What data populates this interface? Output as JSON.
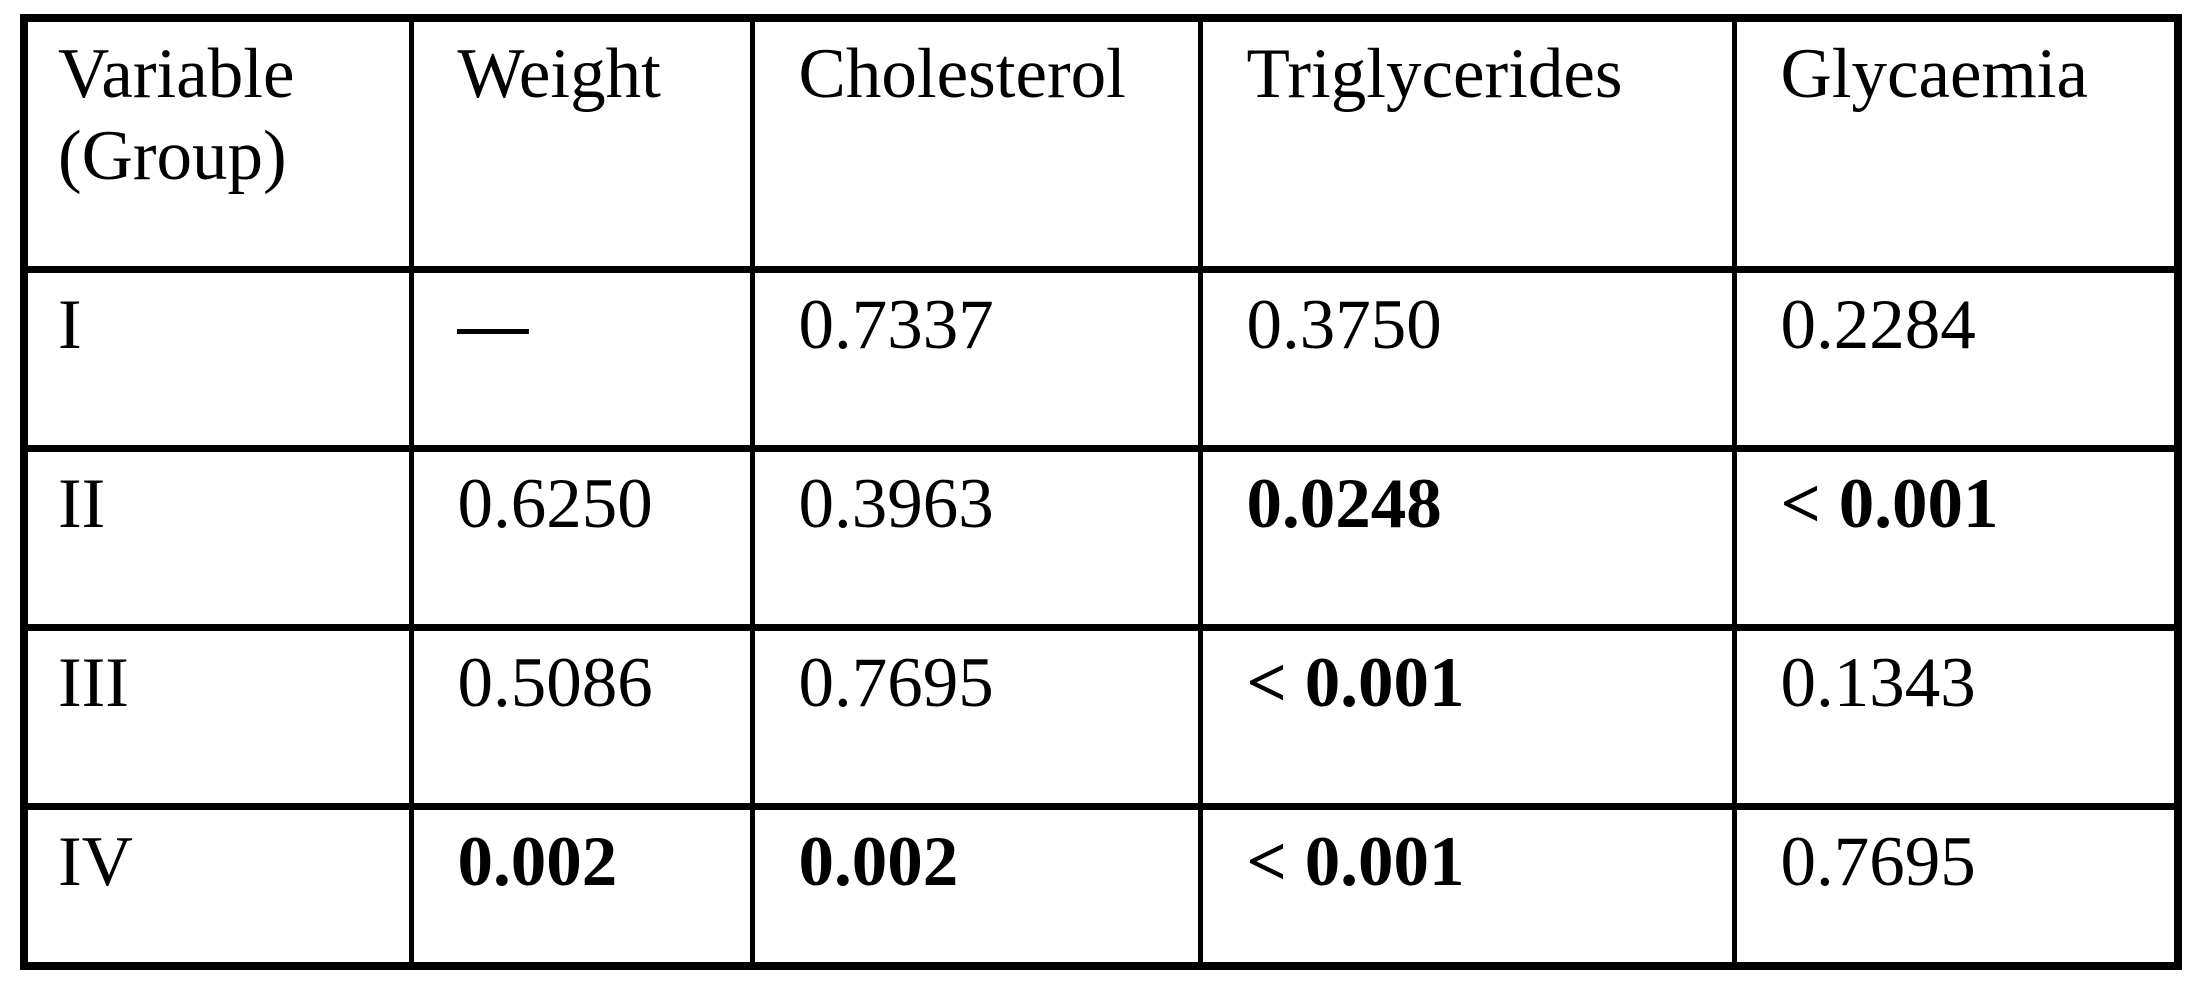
{
  "colors": {
    "background": "#ffffff",
    "border": "#000000",
    "text": "#000000"
  },
  "table": {
    "columns": [
      "Variable (Group)",
      "Weight",
      "Cholesterol",
      "Triglycerides",
      "Glycaemia"
    ],
    "rows": [
      {
        "label": "I",
        "cells": [
          {
            "text": "—",
            "bold": true
          },
          {
            "text": "0.7337",
            "bold": false
          },
          {
            "text": "0.3750",
            "bold": false
          },
          {
            "text": "0.2284",
            "bold": false
          }
        ]
      },
      {
        "label": "II",
        "cells": [
          {
            "text": "0.6250",
            "bold": false
          },
          {
            "text": "0.3963",
            "bold": false
          },
          {
            "text": "0.0248",
            "bold": true
          },
          {
            "text": "< 0.001",
            "bold": true
          }
        ]
      },
      {
        "label": "III",
        "cells": [
          {
            "text": "0.5086",
            "bold": false
          },
          {
            "text": "0.7695",
            "bold": false
          },
          {
            "text": "< 0.001",
            "bold": true
          },
          {
            "text": "0.1343",
            "bold": false
          }
        ]
      },
      {
        "label": "IV",
        "cells": [
          {
            "text": "0.002",
            "bold": true
          },
          {
            "text": "0.002",
            "bold": true
          },
          {
            "text": "< 0.001",
            "bold": true
          },
          {
            "text": "0.7695",
            "bold": false
          }
        ]
      }
    ]
  }
}
